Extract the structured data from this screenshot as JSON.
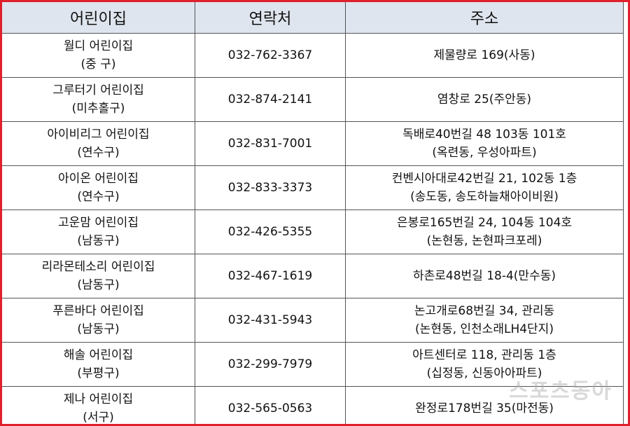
{
  "table": {
    "header": [
      "어린이집",
      "연락처",
      "주소"
    ],
    "rows": [
      {
        "name": [
          "월디 어린이집",
          "(중 구)"
        ],
        "phone": "032-762-3367",
        "address": [
          "제물량로 169(사동)"
        ]
      },
      {
        "name": [
          "그루터기 어린이집",
          "(미추홀구)"
        ],
        "phone": "032-874-2141",
        "address": [
          "염창로 25(주안동)"
        ]
      },
      {
        "name": [
          "아이비리그 어린이집",
          "(연수구)"
        ],
        "phone": "032-831-7001",
        "address": [
          "독배로40번길 48 103동 101호",
          "(옥련동, 우성아파트)"
        ]
      },
      {
        "name": [
          "아이온 어린이집",
          "(연수구)"
        ],
        "phone": "032-833-3373",
        "address": [
          "컨벤시아대로42번길 21, 102동 1층",
          "(송도동, 송도하늘채아이비원)"
        ]
      },
      {
        "name": [
          "고운맘 어린이집",
          "(남동구)"
        ],
        "phone": "032-426-5355",
        "address": [
          "은봉로165번길 24, 104동 104호",
          "(논현동, 논현파크포레)"
        ]
      },
      {
        "name": [
          "리라몬테소리 어린이집",
          "(남동구)"
        ],
        "phone": "032-467-1619",
        "address": [
          "하촌로48번길 18-4(만수동)"
        ]
      },
      {
        "name": [
          "푸른바다 어린이집",
          "(남동구)"
        ],
        "phone": "032-431-5943",
        "address": [
          "논고개로68번길 34, 관리동",
          "(논현동, 인천소래LH4단지)"
        ]
      },
      {
        "name": [
          "해솔 어린이집",
          "(부평구)"
        ],
        "phone": "032-299-7979",
        "address": [
          "아트센터로 118, 관리동 1층",
          "(십정동, 신동아아파트)"
        ]
      },
      {
        "name": [
          "제나 어린이집",
          "(서구)"
        ],
        "phone": "032-565-0563",
        "address": [
          "완정로178번길 35(마전동)"
        ]
      }
    ],
    "watermark": "스포츠동아"
  }
}
